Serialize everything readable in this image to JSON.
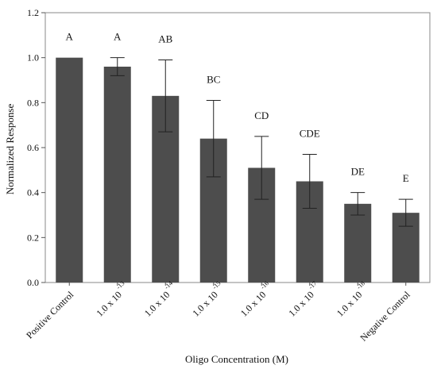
{
  "chart_data": {
    "type": "bar",
    "title": "",
    "xlabel": "Oligo Concentration (M)",
    "ylabel": "Normalized Response",
    "ylim": [
      0,
      1.2
    ],
    "yticks": [
      "0.0",
      "0.2",
      "0.4",
      "0.6",
      "0.8",
      "1.0",
      "1.2"
    ],
    "bar_color": "#4d4d4d",
    "grid": false,
    "categories": [
      {
        "base": "Positive Control",
        "exp": ""
      },
      {
        "base": "1.0 x 10",
        "exp": "-13"
      },
      {
        "base": "1.0 x 10",
        "exp": "-14"
      },
      {
        "base": "1.0 x 10",
        "exp": "-15"
      },
      {
        "base": "1.0 x 10",
        "exp": "-16"
      },
      {
        "base": "1.0 x 10",
        "exp": "-17"
      },
      {
        "base": "1.0 x 10",
        "exp": "-18"
      },
      {
        "base": "Negative Control",
        "exp": ""
      }
    ],
    "values": [
      1.0,
      0.96,
      0.83,
      0.64,
      0.51,
      0.45,
      0.35,
      0.31
    ],
    "errors": [
      0.0,
      0.04,
      0.16,
      0.17,
      0.14,
      0.12,
      0.05,
      0.06
    ],
    "significance_labels": [
      "A",
      "A",
      "AB",
      "BC",
      "CD",
      "CDE",
      "DE",
      "E"
    ]
  }
}
